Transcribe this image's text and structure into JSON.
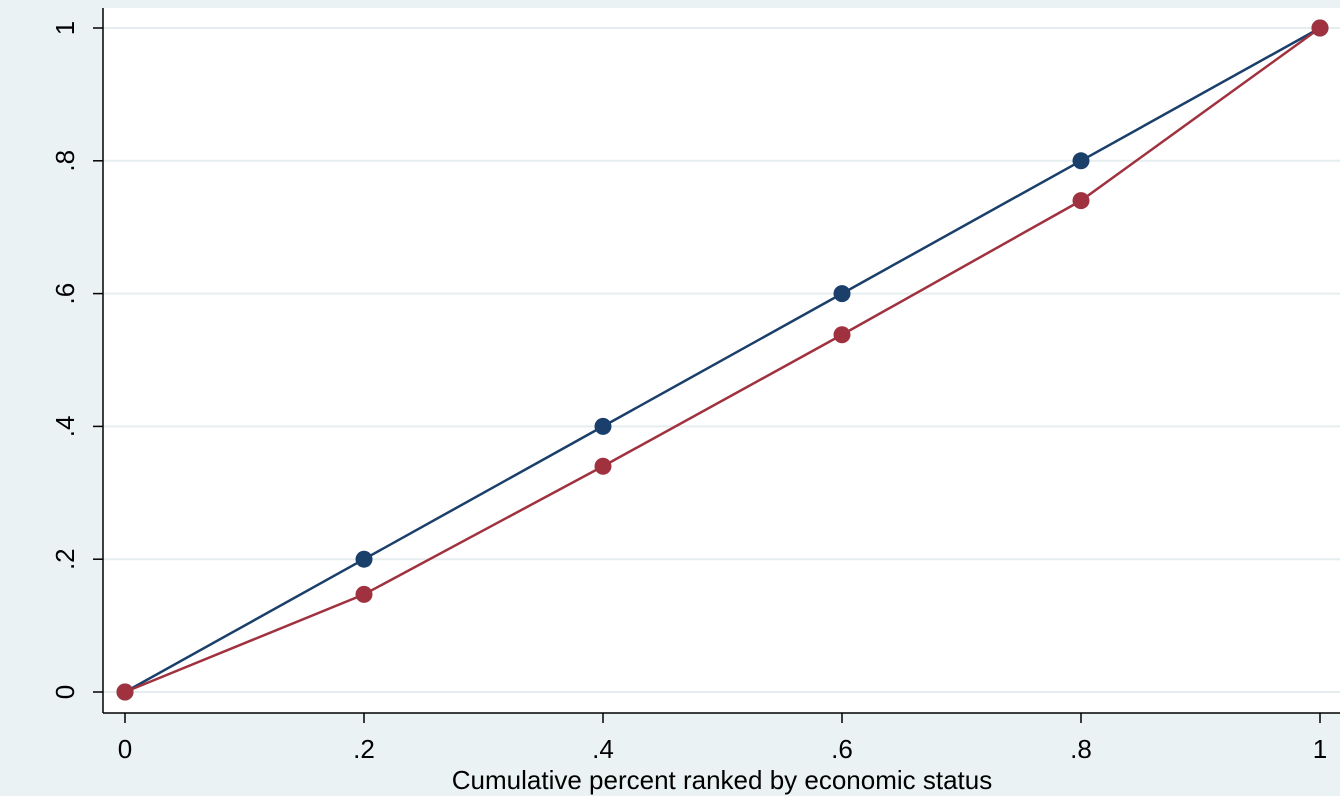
{
  "chart_data": {
    "type": "line",
    "title": "",
    "xlabel": "Cumulative percent ranked by economic status",
    "ylabel": "",
    "xlim": [
      0,
      1
    ],
    "ylim": [
      0,
      1
    ],
    "x_ticks": [
      {
        "value": 0,
        "label": "0"
      },
      {
        "value": 0.2,
        "label": ".2"
      },
      {
        "value": 0.4,
        "label": ".4"
      },
      {
        "value": 0.6,
        "label": ".6"
      },
      {
        "value": 0.8,
        "label": ".8"
      },
      {
        "value": 1,
        "label": "1"
      }
    ],
    "y_ticks": [
      {
        "value": 0,
        "label": "0"
      },
      {
        "value": 0.2,
        "label": ".2"
      },
      {
        "value": 0.4,
        "label": ".4"
      },
      {
        "value": 0.6,
        "label": ".6"
      },
      {
        "value": 0.8,
        "label": ".8"
      },
      {
        "value": 1,
        "label": "1"
      }
    ],
    "grid": true,
    "legend": "none",
    "series": [
      {
        "color": "#1a3f6b",
        "x": [
          0,
          0.2,
          0.4,
          0.6,
          0.8,
          1
        ],
        "y": [
          0,
          0.2,
          0.4,
          0.6,
          0.8,
          1
        ]
      },
      {
        "color": "#a0323f",
        "x": [
          0,
          0.2,
          0.4,
          0.6,
          0.8,
          1
        ],
        "y": [
          0,
          0.147,
          0.34,
          0.538,
          0.74,
          1
        ]
      }
    ]
  }
}
